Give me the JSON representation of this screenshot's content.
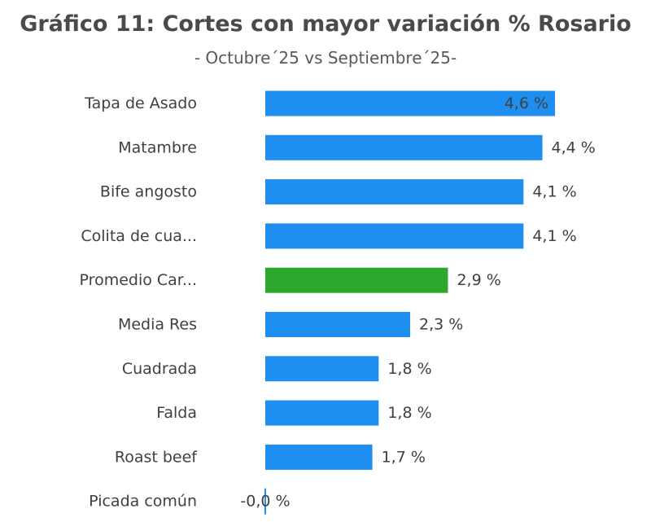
{
  "chart_data": {
    "type": "bar",
    "orientation": "horizontal",
    "title": "Gráfico 11: Cortes con mayor variación % Rosario",
    "subtitle": "- Octubre´25 vs Septiembre´25-",
    "categories": [
      "Tapa de Asado",
      "Matambre",
      "Bife angosto",
      "Colita de cua...",
      "Promedio Car...",
      "Media Res",
      "Cuadrada",
      "Falda",
      "Roast beef",
      "Picada común"
    ],
    "values": [
      4.6,
      4.4,
      4.1,
      4.1,
      2.9,
      2.3,
      1.8,
      1.8,
      1.7,
      -0.0
    ],
    "value_labels": [
      "4,6 %",
      "4,4 %",
      "4,1 %",
      "4,1 %",
      "2,9 %",
      "2,3 %",
      "1,8 %",
      "1,8 %",
      "1,7 %",
      "-0,0 %"
    ],
    "highlight_index": 4,
    "colors": {
      "default": "#1f8ef1",
      "highlight": "#2ca82c"
    },
    "xlabel": "",
    "ylabel": "",
    "grid": false,
    "legend": "none"
  }
}
